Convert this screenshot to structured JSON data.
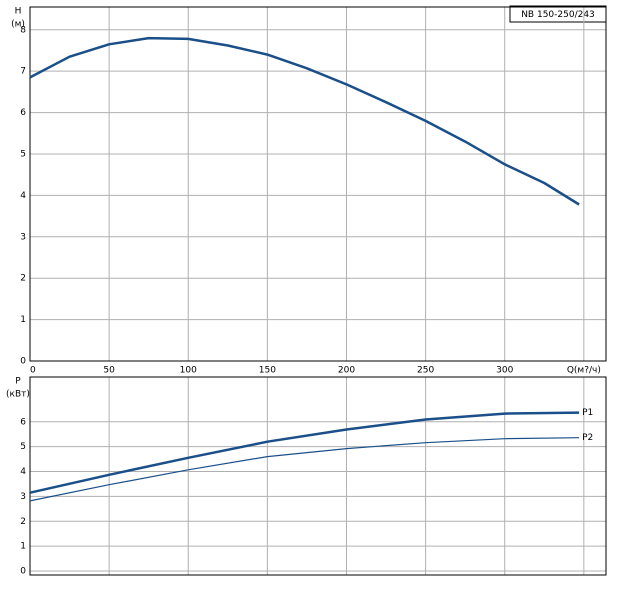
{
  "chart_data": [
    {
      "type": "line",
      "title": "NB 150-250/243",
      "y_label": [
        "H",
        "(м)"
      ],
      "xlim": [
        0,
        364
      ],
      "xticks": [
        0,
        50,
        100,
        150,
        200,
        250,
        300,
        {
          "value": 350,
          "label": "Q(м?/ч)"
        }
      ],
      "ylim": [
        0,
        8.55
      ],
      "yticks": [
        0,
        1,
        2,
        3,
        4,
        5,
        6,
        7,
        8
      ],
      "grid": true,
      "x": [
        0,
        25,
        50,
        75,
        100,
        125,
        150,
        175,
        200,
        225,
        250,
        275,
        300,
        325,
        347
      ],
      "series": [
        {
          "color": "#1a4f8a",
          "width": 2.5,
          "values": [
            6.85,
            7.35,
            7.65,
            7.8,
            7.78,
            7.62,
            7.4,
            7.07,
            6.68,
            6.25,
            5.8,
            5.3,
            4.75,
            4.3,
            3.78
          ]
        }
      ]
    },
    {
      "type": "line",
      "y_label": [
        "P",
        "(кВт)"
      ],
      "xlim": [
        0,
        364
      ],
      "xticks": [
        0,
        50,
        100,
        150,
        200,
        250,
        300,
        350
      ],
      "ylim": [
        -0.16,
        7.8
      ],
      "yticks": [
        0,
        1,
        2,
        3,
        4,
        5,
        6
      ],
      "grid": true,
      "x": [
        0,
        50,
        100,
        150,
        200,
        250,
        300,
        347
      ],
      "series": [
        {
          "name": "P1",
          "color": "#1a4f8a",
          "width": 2.5,
          "values": [
            3.15,
            3.87,
            4.55,
            5.2,
            5.69,
            6.09,
            6.33,
            6.37
          ]
        },
        {
          "name": "P2",
          "color": "#1a4f8a",
          "width": 1.2,
          "values": [
            2.82,
            3.47,
            4.07,
            4.6,
            4.92,
            5.16,
            5.32,
            5.36
          ]
        }
      ]
    }
  ]
}
